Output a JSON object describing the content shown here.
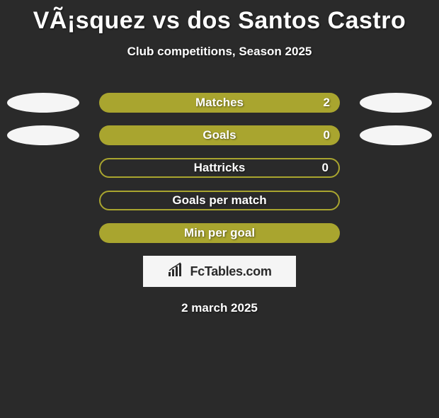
{
  "background_color": "#2a2a2a",
  "title": "VÃ¡squez vs dos Santos Castro",
  "title_color": "#ffffff",
  "title_fontsize": 34,
  "subtitle": "Club competitions, Season 2025",
  "subtitle_color": "#ffffff",
  "subtitle_fontsize": 17,
  "bar_fill_color": "#a9a52f",
  "bar_outline_color": "#a9a52f",
  "bar_text_color": "#ffffff",
  "ellipse_color": "#f5f5f5",
  "rows": [
    {
      "label": "Matches",
      "value": "2",
      "filled": true,
      "left_ellipse": true,
      "right_ellipse": true,
      "show_value": true
    },
    {
      "label": "Goals",
      "value": "0",
      "filled": true,
      "left_ellipse": true,
      "right_ellipse": true,
      "show_value": true
    },
    {
      "label": "Hattricks",
      "value": "0",
      "filled": false,
      "left_ellipse": false,
      "right_ellipse": false,
      "show_value": true
    },
    {
      "label": "Goals per match",
      "value": "",
      "filled": false,
      "left_ellipse": false,
      "right_ellipse": false,
      "show_value": false
    },
    {
      "label": "Min per goal",
      "value": "",
      "filled": true,
      "left_ellipse": false,
      "right_ellipse": false,
      "show_value": false
    }
  ],
  "logo": {
    "text": "FcTables.com",
    "box_bg": "#f5f5f5",
    "text_color": "#2a2a2a",
    "icon_name": "chart-icon"
  },
  "date": "2 march 2025",
  "date_color": "#ffffff"
}
